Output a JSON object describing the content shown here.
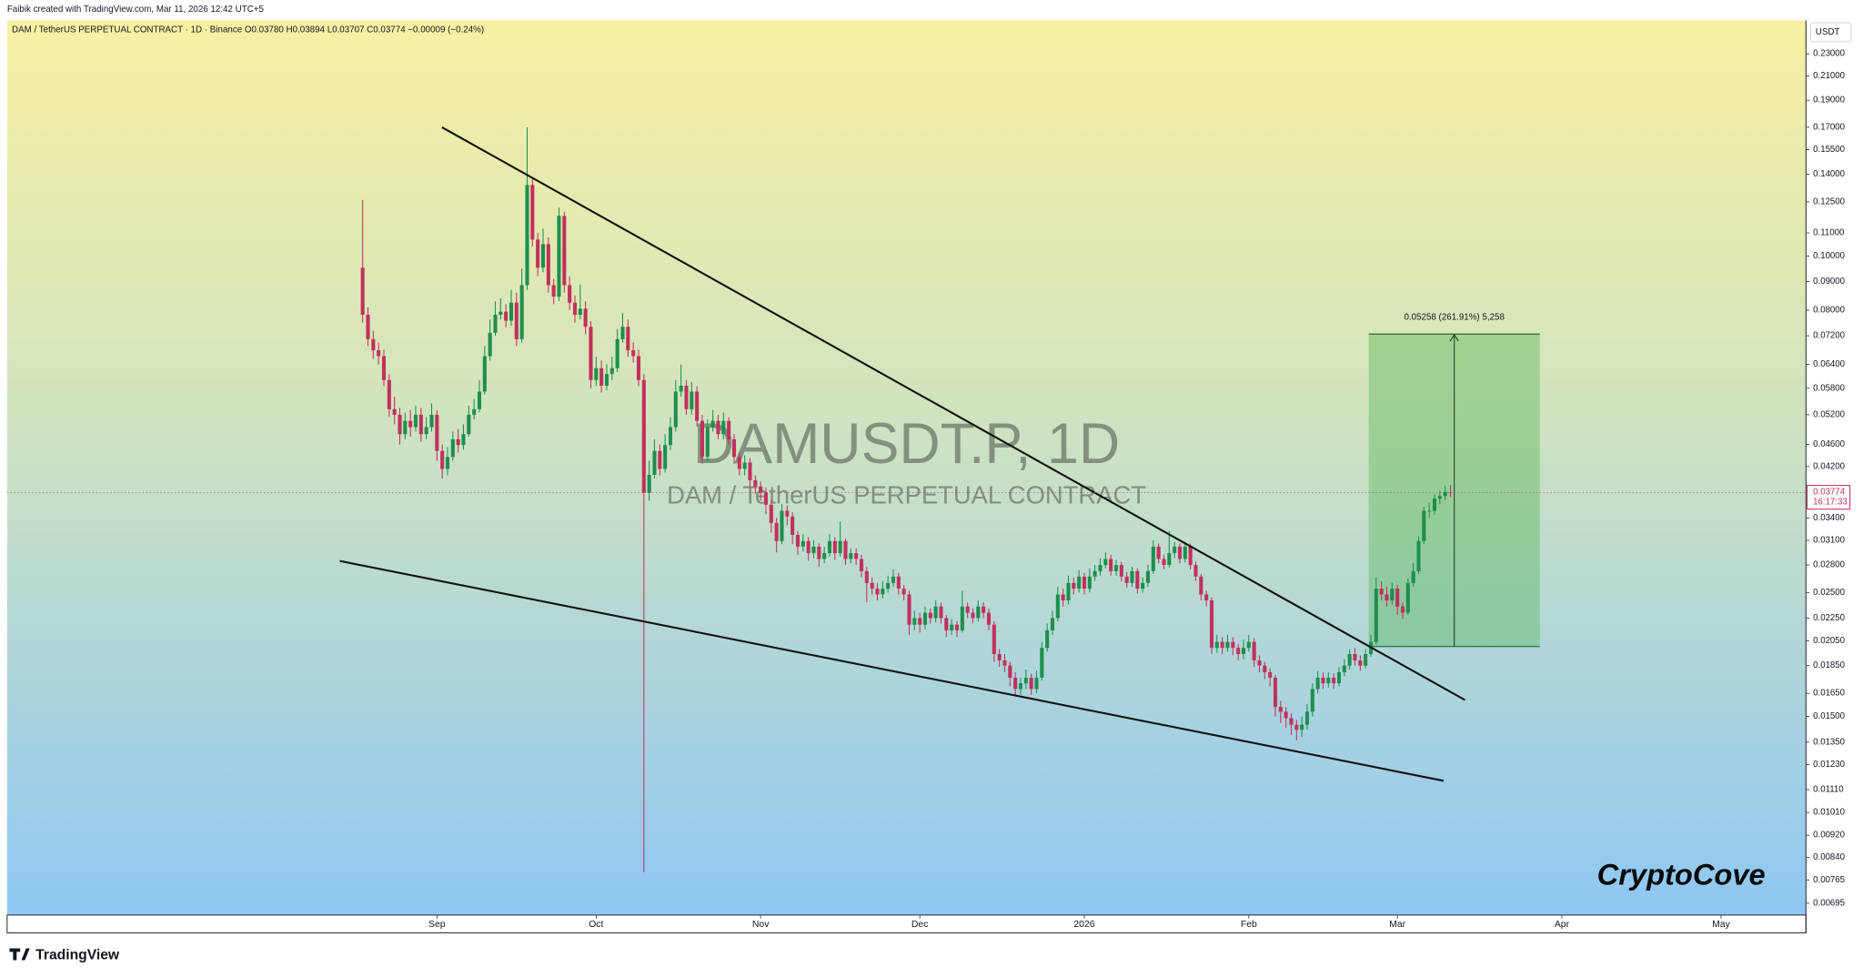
{
  "header": {
    "credit": "Faibik created with TradingView.com, Mar 11, 2026 12:42 UTC+5",
    "legend": "DAM / TetherUS PERPETUAL CONTRACT · 1D · Binance  O0.03780  H0.03894  L0.03707  C0.03774  −0.00009 (−0.24%)",
    "currency": "USDT",
    "watermark_symbol": "DAMUSDT.P, 1D",
    "watermark_name": "DAM / TetherUS PERPETUAL CONTRACT",
    "signature": "CryptoCove",
    "measure_label": "0.05258 (261.91%) 5,258",
    "logo": "TradingView"
  },
  "chart_data": {
    "type": "candlestick",
    "log_scale": true,
    "grid": false,
    "up_color": "#1e8f4e",
    "down_color": "#c2305e",
    "xlim": [
      -67,
      272
    ],
    "xticks": [
      {
        "value": 14,
        "label": "Sep"
      },
      {
        "value": 44,
        "label": "Oct"
      },
      {
        "value": 75,
        "label": "Nov"
      },
      {
        "value": 105,
        "label": "Dec"
      },
      {
        "value": 136,
        "label": "2026"
      },
      {
        "value": 167,
        "label": "Feb"
      },
      {
        "value": 195,
        "label": "Mar"
      },
      {
        "value": 226,
        "label": "Apr"
      },
      {
        "value": 256,
        "label": "May"
      }
    ],
    "ylim": [
      0.00662,
      0.264
    ],
    "yticks": [
      {
        "value": 0.23,
        "label": "0.23000"
      },
      {
        "value": 0.21,
        "label": "0.21000"
      },
      {
        "value": 0.19,
        "label": "0.19000"
      },
      {
        "value": 0.17,
        "label": "0.17000"
      },
      {
        "value": 0.155,
        "label": "0.15500"
      },
      {
        "value": 0.14,
        "label": "0.14000"
      },
      {
        "value": 0.125,
        "label": "0.12500"
      },
      {
        "value": 0.11,
        "label": "0.11000"
      },
      {
        "value": 0.1,
        "label": "0.10000"
      },
      {
        "value": 0.09,
        "label": "0.09000"
      },
      {
        "value": 0.08,
        "label": "0.08000"
      },
      {
        "value": 0.072,
        "label": "0.07200"
      },
      {
        "value": 0.064,
        "label": "0.06400"
      },
      {
        "value": 0.058,
        "label": "0.05800"
      },
      {
        "value": 0.052,
        "label": "0.05200"
      },
      {
        "value": 0.046,
        "label": "0.04600"
      },
      {
        "value": 0.042,
        "label": "0.04200"
      },
      {
        "value": 0.034,
        "label": "0.03400"
      },
      {
        "value": 0.031,
        "label": "0.03100"
      },
      {
        "value": 0.028,
        "label": "0.02800"
      },
      {
        "value": 0.025,
        "label": "0.02500"
      },
      {
        "value": 0.0225,
        "label": "0.02250"
      },
      {
        "value": 0.0205,
        "label": "0.02050"
      },
      {
        "value": 0.0185,
        "label": "0.01850"
      },
      {
        "value": 0.0165,
        "label": "0.01650"
      },
      {
        "value": 0.015,
        "label": "0.01500"
      },
      {
        "value": 0.0135,
        "label": "0.01350"
      },
      {
        "value": 0.0123,
        "label": "0.01230"
      },
      {
        "value": 0.0111,
        "label": "0.01110"
      },
      {
        "value": 0.0101,
        "label": "0.01010"
      },
      {
        "value": 0.0092,
        "label": "0.00920"
      },
      {
        "value": 0.0084,
        "label": "0.00840"
      },
      {
        "value": 0.00765,
        "label": "0.00765"
      },
      {
        "value": 0.00695,
        "label": "0.00695"
      }
    ],
    "last_price": 0.03774,
    "countdown": "16:17:33",
    "open": [
      0.0953,
      0.0785,
      0.071,
      0.0678,
      0.0662,
      0.06,
      0.0532,
      0.052,
      0.048,
      0.0507,
      0.0494,
      0.052,
      0.048,
      0.0494,
      0.052,
      0.0448,
      0.0416,
      0.0437,
      0.047,
      0.0459,
      0.048,
      0.052,
      0.0532,
      0.0572,
      0.0662,
      0.0729,
      0.0785,
      0.0795,
      0.0766,
      0.0825,
      0.071,
      0.0887,
      0.134,
      0.107,
      0.0953,
      0.105,
      0.0887,
      0.0846,
      0.118,
      0.0887,
      0.0825,
      0.0785,
      0.0805,
      0.0747,
      0.06,
      0.063,
      0.0586,
      0.0615,
      0.063,
      0.071,
      0.0747,
      0.0678,
      0.0662,
      0.06,
      0.0377,
      0.0406,
      0.0448,
      0.0416,
      0.0459,
      0.0494,
      0.0572,
      0.0586,
      0.0532,
      0.0572,
      0.0507,
      0.0437,
      0.0494,
      0.0507,
      0.048,
      0.0507,
      0.047,
      0.0437,
      0.0416,
      0.0427,
      0.0397,
      0.0387,
      0.0377,
      0.0359,
      0.0333,
      0.0309,
      0.035,
      0.0342,
      0.0317,
      0.0302,
      0.0309,
      0.0294,
      0.0302,
      0.0287,
      0.0294,
      0.0309,
      0.0294,
      0.0309,
      0.0287,
      0.0294,
      0.0287,
      0.0273,
      0.026,
      0.0254,
      0.0248,
      0.0254,
      0.026,
      0.0267,
      0.0254,
      0.0248,
      0.0219,
      0.0225,
      0.0219,
      0.023,
      0.0225,
      0.0236,
      0.0225,
      0.0214,
      0.0219,
      0.0214,
      0.0236,
      0.023,
      0.0225,
      0.0236,
      0.023,
      0.0219,
      0.0194,
      0.0189,
      0.0185,
      0.0176,
      0.0168,
      0.0172,
      0.0176,
      0.0168,
      0.0176,
      0.0199,
      0.0214,
      0.0225,
      0.0248,
      0.0242,
      0.026,
      0.0254,
      0.0267,
      0.0254,
      0.0267,
      0.0273,
      0.028,
      0.0287,
      0.0273,
      0.028,
      0.0267,
      0.026,
      0.0273,
      0.0254,
      0.026,
      0.0273,
      0.0302,
      0.0287,
      0.028,
      0.0294,
      0.0302,
      0.0287,
      0.0302,
      0.028,
      0.0267,
      0.0248,
      0.0242,
      0.0199,
      0.0204,
      0.0199,
      0.0204,
      0.0199,
      0.0194,
      0.0199,
      0.0204,
      0.0189,
      0.0185,
      0.018,
      0.0176,
      0.0156,
      0.0153,
      0.0149,
      0.0145,
      0.0142,
      0.0145,
      0.0153,
      0.0168,
      0.0176,
      0.0172,
      0.0176,
      0.0172,
      0.018,
      0.0185,
      0.0194,
      0.0189,
      0.0185,
      0.0194,
      0.0204,
      0.0254,
      0.0248,
      0.0242,
      0.0254,
      0.0236,
      0.023,
      0.026,
      0.0273,
      0.0309,
      0.035,
      0.035,
      0.0368,
      0.0372,
      0.0378
    ],
    "high": [
      0.126,
      0.081,
      0.0735,
      0.07,
      0.068,
      0.0615,
      0.056,
      0.0535,
      0.0525,
      0.053,
      0.054,
      0.0535,
      0.0515,
      0.0545,
      0.053,
      0.046,
      0.0455,
      0.0485,
      0.049,
      0.05,
      0.054,
      0.0555,
      0.06,
      0.069,
      0.077,
      0.083,
      0.084,
      0.082,
      0.087,
      0.086,
      0.095,
      0.17,
      0.138,
      0.11,
      0.112,
      0.108,
      0.091,
      0.122,
      0.12,
      0.092,
      0.085,
      0.089,
      0.083,
      0.0765,
      0.066,
      0.065,
      0.064,
      0.066,
      0.074,
      0.079,
      0.077,
      0.07,
      0.068,
      0.0615,
      0.043,
      0.047,
      0.046,
      0.048,
      0.0515,
      0.06,
      0.064,
      0.06,
      0.0595,
      0.0585,
      0.052,
      0.051,
      0.053,
      0.052,
      0.0525,
      0.0515,
      0.048,
      0.0445,
      0.044,
      0.0435,
      0.0405,
      0.0395,
      0.0385,
      0.0365,
      0.034,
      0.036,
      0.0358,
      0.0348,
      0.0322,
      0.0318,
      0.0314,
      0.031,
      0.0306,
      0.0302,
      0.0318,
      0.0314,
      0.0335,
      0.0312,
      0.03,
      0.03,
      0.0292,
      0.0278,
      0.0266,
      0.026,
      0.0262,
      0.0268,
      0.0275,
      0.0271,
      0.0258,
      0.0252,
      0.0232,
      0.023,
      0.0236,
      0.0234,
      0.0242,
      0.024,
      0.0228,
      0.0224,
      0.0222,
      0.0252,
      0.024,
      0.0234,
      0.0242,
      0.024,
      0.0234,
      0.0222,
      0.0198,
      0.0194,
      0.0188,
      0.018,
      0.0176,
      0.0182,
      0.0179,
      0.0181,
      0.0204,
      0.022,
      0.0232,
      0.0256,
      0.0254,
      0.0268,
      0.0266,
      0.0274,
      0.0271,
      0.0276,
      0.028,
      0.0288,
      0.0295,
      0.0292,
      0.0286,
      0.0284,
      0.0272,
      0.0278,
      0.0276,
      0.0266,
      0.028,
      0.031,
      0.0306,
      0.0292,
      0.0322,
      0.0308,
      0.0306,
      0.0308,
      0.0306,
      0.0284,
      0.027,
      0.0252,
      0.0245,
      0.021,
      0.0208,
      0.021,
      0.0208,
      0.0202,
      0.0206,
      0.021,
      0.0207,
      0.0193,
      0.0188,
      0.0183,
      0.0178,
      0.016,
      0.0156,
      0.0152,
      0.0148,
      0.015,
      0.0158,
      0.0172,
      0.0181,
      0.018,
      0.018,
      0.0179,
      0.0184,
      0.019,
      0.0198,
      0.0199,
      0.0193,
      0.0198,
      0.021,
      0.0266,
      0.0262,
      0.0256,
      0.026,
      0.0258,
      0.024,
      0.0265,
      0.0282,
      0.0315,
      0.0356,
      0.0362,
      0.0374,
      0.038,
      0.0388,
      0.03894
    ],
    "low": [
      0.076,
      0.069,
      0.0655,
      0.064,
      0.0585,
      0.0515,
      0.05,
      0.046,
      0.047,
      0.0475,
      0.0485,
      0.0465,
      0.047,
      0.0485,
      0.043,
      0.04,
      0.0405,
      0.043,
      0.0445,
      0.045,
      0.0475,
      0.051,
      0.0525,
      0.0565,
      0.065,
      0.072,
      0.077,
      0.0745,
      0.075,
      0.069,
      0.07,
      0.087,
      0.104,
      0.092,
      0.0935,
      0.086,
      0.082,
      0.083,
      0.086,
      0.08,
      0.076,
      0.077,
      0.0725,
      0.058,
      0.0585,
      0.057,
      0.0575,
      0.06,
      0.062,
      0.07,
      0.066,
      0.0645,
      0.0585,
      0.0079,
      0.0365,
      0.04,
      0.0405,
      0.041,
      0.045,
      0.0485,
      0.056,
      0.052,
      0.052,
      0.0495,
      0.0425,
      0.043,
      0.0485,
      0.047,
      0.047,
      0.046,
      0.0425,
      0.0405,
      0.0405,
      0.0385,
      0.0375,
      0.0365,
      0.0345,
      0.032,
      0.0295,
      0.0305,
      0.033,
      0.0305,
      0.0292,
      0.0296,
      0.0285,
      0.0288,
      0.0278,
      0.0282,
      0.029,
      0.0286,
      0.029,
      0.028,
      0.0282,
      0.028,
      0.0266,
      0.024,
      0.0248,
      0.0242,
      0.0244,
      0.025,
      0.0256,
      0.0248,
      0.0242,
      0.021,
      0.0214,
      0.0212,
      0.0215,
      0.022,
      0.0221,
      0.022,
      0.0208,
      0.021,
      0.0208,
      0.0212,
      0.0225,
      0.022,
      0.0222,
      0.0225,
      0.0214,
      0.0188,
      0.0184,
      0.018,
      0.017,
      0.0163,
      0.0164,
      0.0168,
      0.0164,
      0.0165,
      0.0174,
      0.0196,
      0.021,
      0.0222,
      0.0236,
      0.0238,
      0.0248,
      0.025,
      0.0248,
      0.025,
      0.0262,
      0.0268,
      0.0276,
      0.0268,
      0.0268,
      0.0262,
      0.0255,
      0.0256,
      0.0249,
      0.025,
      0.0256,
      0.027,
      0.0282,
      0.0275,
      0.0277,
      0.0288,
      0.0282,
      0.0283,
      0.0275,
      0.0262,
      0.0242,
      0.0236,
      0.0194,
      0.0195,
      0.0194,
      0.0196,
      0.0193,
      0.0189,
      0.019,
      0.0196,
      0.0184,
      0.018,
      0.0175,
      0.017,
      0.015,
      0.0146,
      0.0143,
      0.0139,
      0.0136,
      0.0138,
      0.0142,
      0.015,
      0.0165,
      0.0168,
      0.0169,
      0.0168,
      0.017,
      0.0177,
      0.0182,
      0.0185,
      0.0181,
      0.0183,
      0.0192,
      0.0202,
      0.0242,
      0.0236,
      0.0238,
      0.0228,
      0.0224,
      0.0228,
      0.0256,
      0.027,
      0.0305,
      0.034,
      0.0344,
      0.036,
      0.0366,
      0.03707
    ],
    "close": [
      0.0785,
      0.071,
      0.0678,
      0.0662,
      0.06,
      0.0532,
      0.052,
      0.048,
      0.0507,
      0.0494,
      0.052,
      0.048,
      0.0494,
      0.052,
      0.0448,
      0.0416,
      0.0437,
      0.047,
      0.0459,
      0.048,
      0.052,
      0.0532,
      0.0572,
      0.0662,
      0.0729,
      0.0785,
      0.0795,
      0.0766,
      0.0825,
      0.071,
      0.0887,
      0.134,
      0.107,
      0.0953,
      0.105,
      0.0887,
      0.0846,
      0.118,
      0.0887,
      0.0825,
      0.0785,
      0.0805,
      0.0747,
      0.06,
      0.063,
      0.0586,
      0.0615,
      0.063,
      0.071,
      0.0747,
      0.0678,
      0.0662,
      0.06,
      0.0377,
      0.0406,
      0.0448,
      0.0416,
      0.0459,
      0.0494,
      0.0572,
      0.0586,
      0.0532,
      0.0572,
      0.0507,
      0.0437,
      0.0494,
      0.0507,
      0.048,
      0.0507,
      0.047,
      0.0437,
      0.0416,
      0.0427,
      0.0397,
      0.0387,
      0.0377,
      0.0359,
      0.0333,
      0.0309,
      0.035,
      0.0342,
      0.0317,
      0.0302,
      0.0309,
      0.0294,
      0.0302,
      0.0287,
      0.0294,
      0.0309,
      0.0294,
      0.0309,
      0.0287,
      0.0294,
      0.0287,
      0.0273,
      0.026,
      0.0254,
      0.0248,
      0.0254,
      0.026,
      0.0267,
      0.0254,
      0.0248,
      0.0219,
      0.0225,
      0.0219,
      0.023,
      0.0225,
      0.0236,
      0.0225,
      0.0214,
      0.0219,
      0.0214,
      0.0236,
      0.023,
      0.0225,
      0.0236,
      0.023,
      0.0219,
      0.0194,
      0.0189,
      0.0185,
      0.0176,
      0.0168,
      0.0172,
      0.0176,
      0.0168,
      0.0176,
      0.0199,
      0.0214,
      0.0225,
      0.0248,
      0.0242,
      0.026,
      0.0254,
      0.0267,
      0.0254,
      0.0267,
      0.0273,
      0.028,
      0.0287,
      0.0273,
      0.028,
      0.0267,
      0.026,
      0.0273,
      0.0254,
      0.026,
      0.0273,
      0.0302,
      0.0287,
      0.028,
      0.0294,
      0.0302,
      0.0287,
      0.0302,
      0.028,
      0.0267,
      0.0248,
      0.0242,
      0.0199,
      0.0204,
      0.0199,
      0.0204,
      0.0199,
      0.0194,
      0.0199,
      0.0204,
      0.0189,
      0.0185,
      0.018,
      0.0176,
      0.0156,
      0.0153,
      0.0149,
      0.0145,
      0.0142,
      0.0145,
      0.0153,
      0.0168,
      0.0176,
      0.0172,
      0.0176,
      0.0172,
      0.018,
      0.0185,
      0.0194,
      0.0189,
      0.0185,
      0.0194,
      0.0204,
      0.0254,
      0.0248,
      0.0242,
      0.0254,
      0.0236,
      0.023,
      0.026,
      0.0273,
      0.0309,
      0.035,
      0.035,
      0.0368,
      0.0372,
      0.03783,
      0.03774
    ]
  }
}
